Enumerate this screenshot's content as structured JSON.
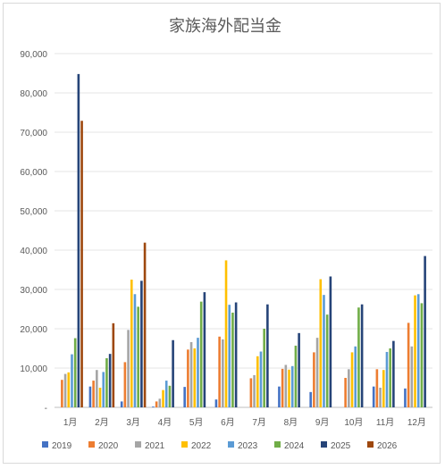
{
  "chart_data": {
    "type": "bar",
    "title": "家族海外配当金",
    "xlabel": "",
    "ylabel": "",
    "ylim": [
      0,
      90000
    ],
    "yticks": [
      0,
      10000,
      20000,
      30000,
      40000,
      50000,
      60000,
      70000,
      80000,
      90000
    ],
    "ytick_labels": [
      "-",
      "10,000",
      "20,000",
      "30,000",
      "40,000",
      "50,000",
      "60,000",
      "70,000",
      "80,000",
      "90,000"
    ],
    "grid": true,
    "legend_position": "bottom",
    "categories": [
      "1月",
      "2月",
      "3月",
      "4月",
      "5月",
      "6月",
      "7月",
      "8月",
      "9月",
      "10月",
      "11月",
      "12月"
    ],
    "series": [
      {
        "name": "2019",
        "color": "#4472C4",
        "values": [
          0,
          5300,
          1500,
          200,
          5200,
          2000,
          0,
          5300,
          3900,
          0,
          5300,
          4800
        ]
      },
      {
        "name": "2020",
        "color": "#ED7D31",
        "values": [
          7000,
          6800,
          11500,
          1500,
          14700,
          18000,
          7400,
          9800,
          14000,
          7500,
          9700,
          21500
        ]
      },
      {
        "name": "2021",
        "color": "#A5A5A5",
        "values": [
          8500,
          9500,
          19700,
          2200,
          16600,
          17300,
          8200,
          10800,
          17700,
          9700,
          5000,
          15500
        ]
      },
      {
        "name": "2022",
        "color": "#FFC000",
        "values": [
          8900,
          5000,
          32500,
          4400,
          15000,
          37400,
          13000,
          9600,
          32600,
          14000,
          9500,
          28500
        ]
      },
      {
        "name": "2023",
        "color": "#5B9BD5",
        "values": [
          13500,
          9000,
          28800,
          6800,
          17700,
          26100,
          14200,
          10500,
          28600,
          15500,
          14100,
          28800
        ]
      },
      {
        "name": "2024",
        "color": "#70AD47",
        "values": [
          17600,
          12500,
          25600,
          5500,
          26900,
          24100,
          20000,
          15700,
          23600,
          25400,
          15000,
          26500
        ]
      },
      {
        "name": "2025",
        "color": "#264478",
        "values": [
          84800,
          13600,
          32200,
          17100,
          29300,
          26700,
          26200,
          18900,
          33300,
          26200,
          16900,
          38500
        ]
      },
      {
        "name": "2026",
        "color": "#9E480E",
        "values": [
          72900,
          21400,
          41900,
          0,
          0,
          0,
          0,
          0,
          0,
          0,
          0,
          0
        ]
      }
    ]
  }
}
